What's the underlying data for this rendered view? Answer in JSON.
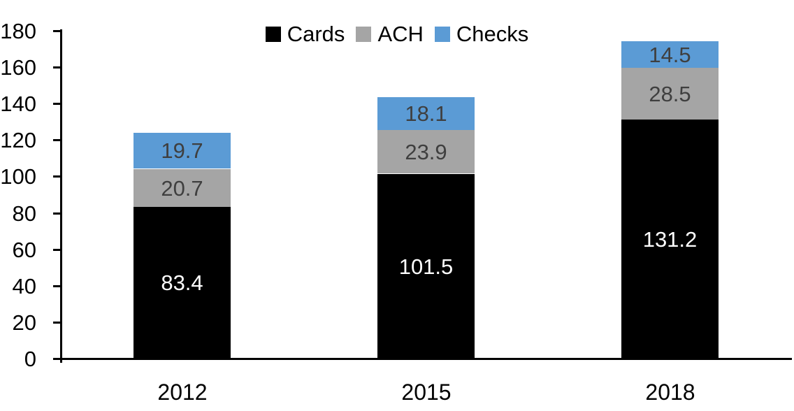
{
  "chart_data": {
    "type": "bar",
    "stacked": true,
    "title": "",
    "categories": [
      "2012",
      "2015",
      "2018"
    ],
    "series": [
      {
        "name": "Cards",
        "color": "#000000",
        "label_color": "#ffffff",
        "values": [
          83.4,
          101.5,
          131.2
        ]
      },
      {
        "name": "ACH",
        "color": "#A5A5A5",
        "label_color": "#3F3F3F",
        "values": [
          20.7,
          23.9,
          28.5
        ]
      },
      {
        "name": "Checks",
        "color": "#5B9BD5",
        "label_color": "#3F3F3F",
        "values": [
          19.7,
          18.1,
          14.5
        ]
      }
    ],
    "ylim": [
      0,
      180
    ],
    "yticks": [
      0,
      20,
      40,
      60,
      80,
      100,
      120,
      140,
      160,
      180
    ],
    "legend_position": "top-center",
    "legend_labels": [
      "Cards",
      "ACH",
      "Checks"
    ],
    "grid": false,
    "axis_color": "#000000",
    "data_labels_shown": true
  }
}
